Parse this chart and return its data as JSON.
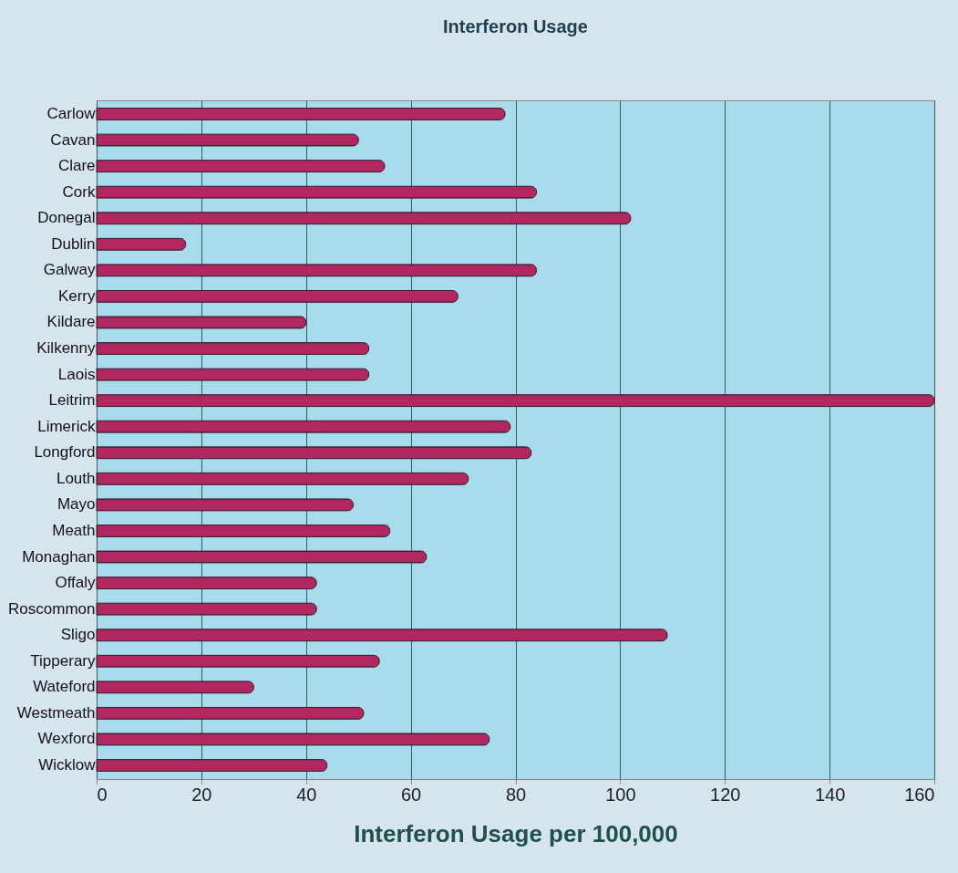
{
  "chart_data": {
    "type": "bar",
    "orientation": "horizontal",
    "title": "Interferon  Usage",
    "xlabel": "Interferon Usage per 100,000",
    "categories": [
      "Carlow",
      "Cavan",
      "Clare",
      "Cork",
      "Donegal",
      "Dublin",
      "Galway",
      "Kerry",
      "Kildare",
      "Kilkenny",
      "Laois",
      "Leitrim",
      "Limerick",
      "Longford",
      "Louth",
      "Mayo",
      "Meath",
      "Monaghan",
      "Offaly",
      "Roscommon",
      "Sligo",
      "Tipperary",
      "Wateford",
      "Westmeath",
      "Wexford",
      "Wicklow"
    ],
    "values": [
      78,
      50,
      55,
      84,
      102,
      17,
      84,
      69,
      40,
      52,
      52,
      160,
      79,
      83,
      71,
      49,
      56,
      63,
      42,
      42,
      109,
      54,
      30,
      51,
      75,
      44
    ],
    "color": "#b0285f",
    "xlim": [
      0,
      160
    ],
    "xticks": [
      0,
      20,
      40,
      60,
      80,
      100,
      120,
      140,
      160
    ],
    "grid": "x"
  }
}
